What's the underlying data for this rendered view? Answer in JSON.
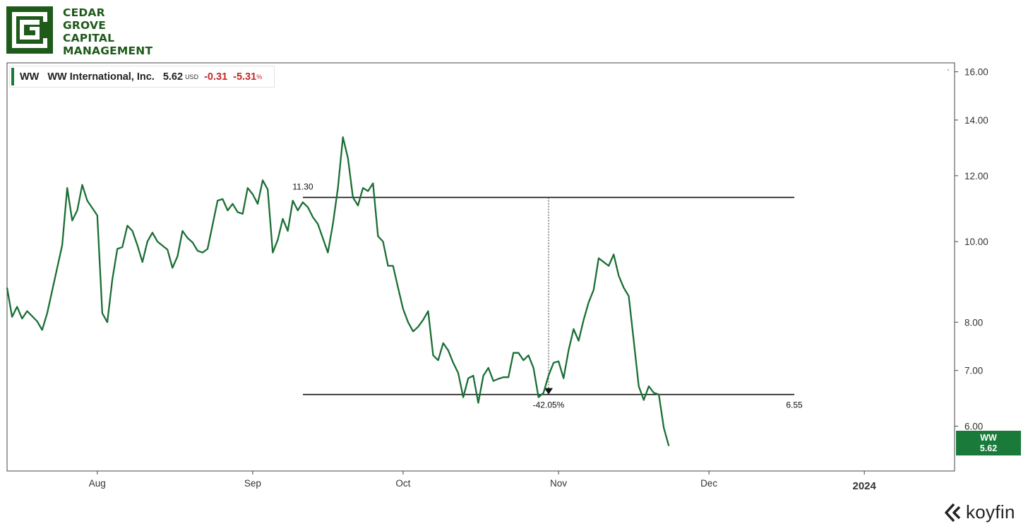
{
  "brand": {
    "name_lines": [
      "CEDAR",
      "GROVE",
      "CAPITAL",
      "MANAGEMENT"
    ],
    "color": "#1e5a1a",
    "icon": "cedar-grove-logo-icon"
  },
  "legend": {
    "ticker": "WW",
    "name": "WW International, Inc.",
    "price": "5.62",
    "currency": "USD",
    "change": "-0.31",
    "change_pct": "-5.31",
    "pct_symbol": "%"
  },
  "price_tag": {
    "ticker": "WW",
    "value": "5.62"
  },
  "footer": {
    "provider": "koyfin",
    "icon": "koyfin-logo-icon"
  },
  "chart_data": {
    "type": "line",
    "y_scale": "log",
    "ylim": [
      5.3,
      16.4
    ],
    "xlim": [
      "2023-07-14",
      "2024-01-19"
    ],
    "x_ticks": [
      {
        "date": "2023-08-01",
        "label": "Aug",
        "bold": false
      },
      {
        "date": "2023-09-01",
        "label": "Sep",
        "bold": false
      },
      {
        "date": "2023-10-01",
        "label": "Oct",
        "bold": false
      },
      {
        "date": "2023-11-01",
        "label": "Nov",
        "bold": false
      },
      {
        "date": "2023-12-01",
        "label": "Dec",
        "bold": false
      },
      {
        "date": "2024-01-01",
        "label": "2024",
        "bold": true
      }
    ],
    "y_ticks": [
      "16.00",
      "14.00",
      "12.00",
      "10.00",
      "8.00",
      "7.00",
      "6.00"
    ],
    "line_color": "#1a6e35",
    "series": [
      {
        "values": [
          [
            "2023-07-14",
            8.8
          ],
          [
            "2023-07-15",
            8.12
          ],
          [
            "2023-07-16",
            8.35
          ],
          [
            "2023-07-17",
            8.08
          ],
          [
            "2023-07-18",
            8.25
          ],
          [
            "2023-07-20",
            8.02
          ],
          [
            "2023-07-21",
            7.83
          ],
          [
            "2023-07-22",
            8.2
          ],
          [
            "2023-07-25",
            9.9
          ],
          [
            "2023-07-26",
            11.6
          ],
          [
            "2023-07-27",
            10.6
          ],
          [
            "2023-07-28",
            10.9
          ],
          [
            "2023-07-29",
            11.7
          ],
          [
            "2023-07-30",
            11.2
          ],
          [
            "2023-08-01",
            10.75
          ],
          [
            "2023-08-02",
            8.2
          ],
          [
            "2023-08-03",
            8.0
          ],
          [
            "2023-08-04",
            9.0
          ],
          [
            "2023-08-05",
            9.8
          ],
          [
            "2023-08-06",
            9.85
          ],
          [
            "2023-08-07",
            10.45
          ],
          [
            "2023-08-08",
            10.3
          ],
          [
            "2023-08-09",
            9.9
          ],
          [
            "2023-08-10",
            9.45
          ],
          [
            "2023-08-11",
            10.0
          ],
          [
            "2023-08-12",
            10.25
          ],
          [
            "2023-08-13",
            10.0
          ],
          [
            "2023-08-15",
            9.78
          ],
          [
            "2023-08-16",
            9.3
          ],
          [
            "2023-08-17",
            9.6
          ],
          [
            "2023-08-18",
            10.3
          ],
          [
            "2023-08-19",
            10.1
          ],
          [
            "2023-08-20",
            9.98
          ],
          [
            "2023-08-21",
            9.75
          ],
          [
            "2023-08-22",
            9.7
          ],
          [
            "2023-08-23",
            9.8
          ],
          [
            "2023-08-25",
            11.2
          ],
          [
            "2023-08-26",
            11.25
          ],
          [
            "2023-08-27",
            10.9
          ],
          [
            "2023-08-28",
            11.1
          ],
          [
            "2023-08-29",
            10.85
          ],
          [
            "2023-08-30",
            10.8
          ],
          [
            "2023-08-31",
            11.6
          ],
          [
            "2023-09-01",
            11.4
          ],
          [
            "2023-09-02",
            11.1
          ],
          [
            "2023-09-03",
            11.85
          ],
          [
            "2023-09-04",
            11.55
          ],
          [
            "2023-09-05",
            9.7
          ],
          [
            "2023-09-06",
            10.05
          ],
          [
            "2023-09-07",
            10.65
          ],
          [
            "2023-09-08",
            10.3
          ],
          [
            "2023-09-09",
            11.2
          ],
          [
            "2023-09-10",
            10.9
          ],
          [
            "2023-09-11",
            11.15
          ],
          [
            "2023-09-12",
            11.0
          ],
          [
            "2023-09-13",
            10.7
          ],
          [
            "2023-09-14",
            10.5
          ],
          [
            "2023-09-16",
            9.7
          ],
          [
            "2023-09-17",
            10.5
          ],
          [
            "2023-09-18",
            11.6
          ],
          [
            "2023-09-19",
            13.35
          ],
          [
            "2023-09-20",
            12.6
          ],
          [
            "2023-09-21",
            11.3
          ],
          [
            "2023-09-22",
            11.05
          ],
          [
            "2023-09-23",
            11.6
          ],
          [
            "2023-09-24",
            11.5
          ],
          [
            "2023-09-25",
            11.75
          ],
          [
            "2023-09-26",
            10.15
          ],
          [
            "2023-09-27",
            10.0
          ],
          [
            "2023-09-28",
            9.35
          ],
          [
            "2023-09-29",
            9.35
          ],
          [
            "2023-09-30",
            8.8
          ],
          [
            "2023-10-01",
            8.3
          ],
          [
            "2023-10-02",
            8.0
          ],
          [
            "2023-10-03",
            7.8
          ],
          [
            "2023-10-04",
            7.9
          ],
          [
            "2023-10-05",
            8.05
          ],
          [
            "2023-10-06",
            8.25
          ],
          [
            "2023-10-07",
            7.3
          ],
          [
            "2023-10-08",
            7.2
          ],
          [
            "2023-10-09",
            7.55
          ],
          [
            "2023-10-10",
            7.4
          ],
          [
            "2023-10-11",
            7.15
          ],
          [
            "2023-10-12",
            6.95
          ],
          [
            "2023-10-13",
            6.5
          ],
          [
            "2023-10-14",
            6.85
          ],
          [
            "2023-10-15",
            6.9
          ],
          [
            "2023-10-16",
            6.4
          ],
          [
            "2023-10-17",
            6.9
          ],
          [
            "2023-10-18",
            7.05
          ],
          [
            "2023-10-19",
            6.8
          ],
          [
            "2023-10-20",
            6.84
          ],
          [
            "2023-10-21",
            6.87
          ],
          [
            "2023-10-22",
            6.87
          ],
          [
            "2023-10-23",
            7.35
          ],
          [
            "2023-10-24",
            7.35
          ],
          [
            "2023-10-25",
            7.2
          ],
          [
            "2023-10-26",
            7.3
          ],
          [
            "2023-10-27",
            7.05
          ],
          [
            "2023-10-28",
            6.5
          ],
          [
            "2023-10-29",
            6.58
          ],
          [
            "2023-10-30",
            6.9
          ],
          [
            "2023-10-31",
            7.15
          ],
          [
            "2023-11-01",
            7.18
          ],
          [
            "2023-11-02",
            6.85
          ],
          [
            "2023-11-03",
            7.4
          ],
          [
            "2023-11-04",
            7.85
          ],
          [
            "2023-11-05",
            7.6
          ],
          [
            "2023-11-06",
            8.05
          ],
          [
            "2023-11-07",
            8.45
          ],
          [
            "2023-11-08",
            8.75
          ],
          [
            "2023-11-09",
            9.55
          ],
          [
            "2023-11-10",
            9.45
          ],
          [
            "2023-11-11",
            9.35
          ],
          [
            "2023-11-12",
            9.65
          ],
          [
            "2023-11-13",
            9.1
          ],
          [
            "2023-11-14",
            8.8
          ],
          [
            "2023-11-15",
            8.6
          ],
          [
            "2023-11-16",
            7.6
          ],
          [
            "2023-11-17",
            6.7
          ],
          [
            "2023-11-18",
            6.45
          ],
          [
            "2023-11-19",
            6.7
          ],
          [
            "2023-11-20",
            6.58
          ],
          [
            "2023-11-21",
            6.55
          ],
          [
            "2023-11-22",
            5.97
          ],
          [
            "2023-11-23",
            5.68
          ]
        ]
      }
    ],
    "annotations": [
      {
        "type": "hline",
        "y": 11.3,
        "label": "11.30",
        "label_side": "left"
      },
      {
        "type": "hline",
        "y": 6.55,
        "label": "6.55",
        "label_side": "right"
      },
      {
        "type": "vector",
        "label": "-42.05%"
      }
    ]
  }
}
